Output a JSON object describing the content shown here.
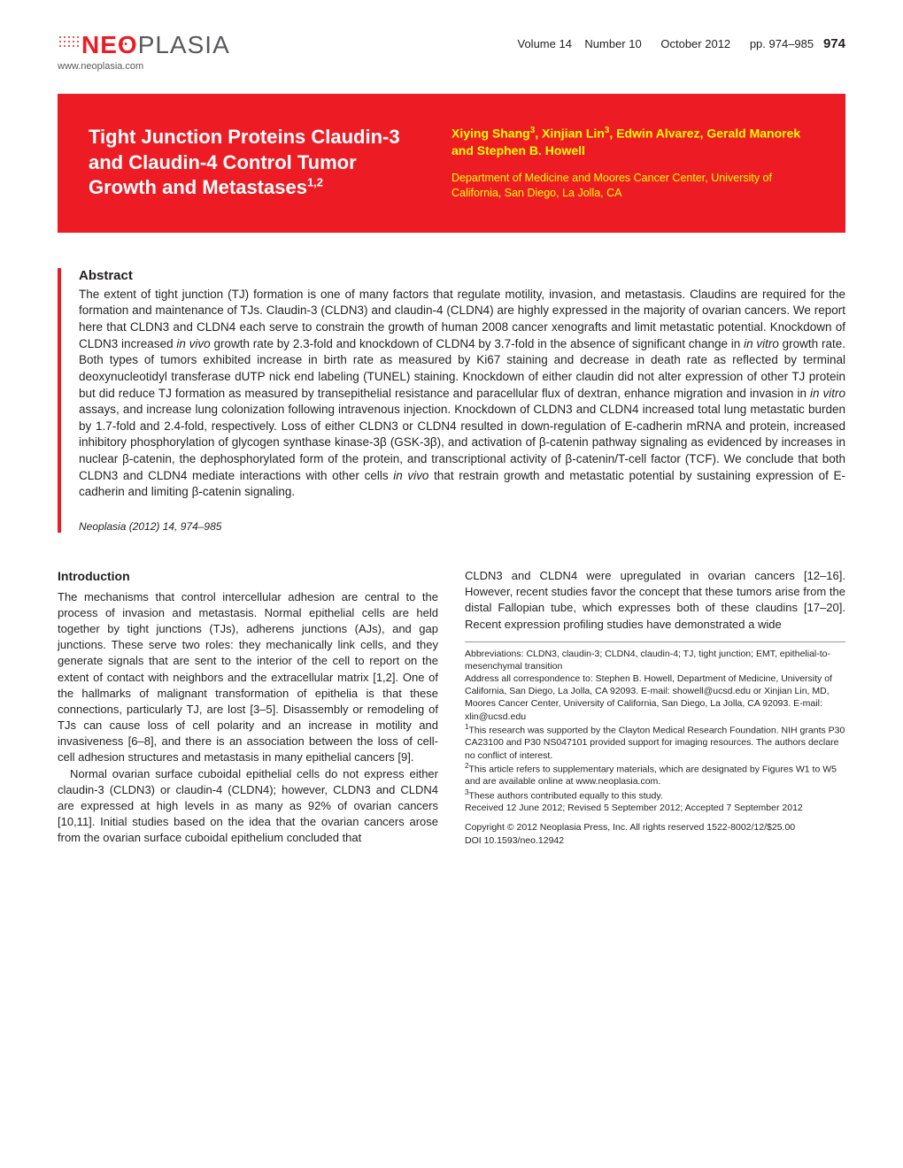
{
  "header": {
    "logo_prefix": "NE",
    "logo_o_char": "O",
    "logo_suffix": "PLASIA",
    "url": "www.neoplasia.com",
    "volume": "Volume 14",
    "number": "Number 10",
    "date": "October 2012",
    "pages": "pp. 974–985",
    "page_no": "974",
    "dot_color": "#ed1c24"
  },
  "banner": {
    "bg_color": "#ed1c24",
    "title_color": "#ffffff",
    "accent_color": "#ffff00",
    "title": "Tight Junction Proteins Claudin-3 and Claudin-4 Control Tumor Growth and Metastases",
    "title_sup": "1,2",
    "authors_html": "Xiying Shang<sup>3</sup>, Xinjian Lin<sup>3</sup>, Edwin Alvarez, Gerald Manorek and Stephen B. Howell",
    "affiliation": "Department of Medicine and Moores Cancer Center, University of California, San Diego, La Jolla, CA"
  },
  "abstract": {
    "heading": "Abstract",
    "body": "The extent of tight junction (TJ) formation is one of many factors that regulate motility, invasion, and metastasis. Claudins are required for the formation and maintenance of TJs. Claudin-3 (CLDN3) and claudin-4 (CLDN4) are highly expressed in the majority of ovarian cancers. We report here that CLDN3 and CLDN4 each serve to constrain the growth of human 2008 cancer xenografts and limit metastatic potential. Knockdown of CLDN3 increased in vivo growth rate by 2.3-fold and knockdown of CLDN4 by 3.7-fold in the absence of significant change in in vitro growth rate. Both types of tumors exhibited increase in birth rate as measured by Ki67 staining and decrease in death rate as reflected by terminal deoxynucleotidyl transferase dUTP nick end labeling (TUNEL) staining. Knockdown of either claudin did not alter expression of other TJ protein but did reduce TJ formation as measured by transepithelial resistance and paracellular flux of dextran, enhance migration and invasion in in vitro assays, and increase lung colonization following intravenous injection. Knockdown of CLDN3 and CLDN4 increased total lung metastatic burden by 1.7-fold and 2.4-fold, respectively. Loss of either CLDN3 or CLDN4 resulted in down-regulation of E-cadherin mRNA and protein, increased inhibitory phosphorylation of glycogen synthase kinase-3β (GSK-3β), and activation of β-catenin pathway signaling as evidenced by increases in nuclear β-catenin, the dephosphorylated form of the protein, and transcriptional activity of β-catenin/T-cell factor (TCF). We conclude that both CLDN3 and CLDN4 mediate interactions with other cells in vivo that restrain growth and metastatic potential by sustaining expression of E-cadherin and limiting β-catenin signaling.",
    "citation": "Neoplasia (2012) 14, 974–985"
  },
  "intro": {
    "heading": "Introduction",
    "p1": "The mechanisms that control intercellular adhesion are central to the process of invasion and metastasis. Normal epithelial cells are held together by tight junctions (TJs), adherens junctions (AJs), and gap junctions. These serve two roles: they mechanically link cells, and they generate signals that are sent to the interior of the cell to report on the extent of contact with neighbors and the extracellular matrix [1,2]. One of the hallmarks of malignant transformation of epithelia is that these connections, particularly TJ, are lost [3–5]. Disassembly or remodeling of TJs can cause loss of cell polarity and an increase in motility and invasiveness [6–8], and there is an association between the loss of cell-cell adhesion structures and metastasis in many epithelial cancers [9].",
    "p2": "Normal ovarian surface cuboidal epithelial cells do not express either claudin-3 (CLDN3) or claudin-4 (CLDN4); however, CLDN3 and CLDN4 are expressed at high levels in as many as 92% of ovarian cancers [10,11]. Initial studies based on the idea that the ovarian cancers arose from the ovarian surface cuboidal epithelium concluded that",
    "p3": "CLDN3 and CLDN4 were upregulated in ovarian cancers [12–16]. However, recent studies favor the concept that these tumors arise from the distal Fallopian tube, which expresses both of these claudins [17–20]. Recent expression profiling studies have demonstrated a wide"
  },
  "footnotes": {
    "abbrev": "Abbreviations: CLDN3, claudin-3; CLDN4, claudin-4; TJ, tight junction; EMT, epithelial-to-mesenchymal transition",
    "address": "Address all correspondence to: Stephen B. Howell, Department of Medicine, University of California, San Diego, La Jolla, CA 92093. E-mail: showell@ucsd.edu or Xinjian Lin, MD, Moores Cancer Center, University of California, San Diego, La Jolla, CA 92093. E-mail: xlin@ucsd.edu",
    "fn1": "This research was supported by the Clayton Medical Research Foundation. NIH grants P30 CA23100 and P30 NS047101 provided support for imaging resources. The authors declare no conflict of interest.",
    "fn2": "This article refers to supplementary materials, which are designated by Figures W1 to W5 and are available online at www.neoplasia.com.",
    "fn3": "These authors contributed equally to this study.",
    "received": "Received 12 June 2012; Revised 5 September 2012; Accepted 7 September 2012",
    "copyright": "Copyright © 2012 Neoplasia Press, Inc. All rights reserved 1522-8002/12/$25.00",
    "doi": "DOI 10.1593/neo.12942"
  }
}
